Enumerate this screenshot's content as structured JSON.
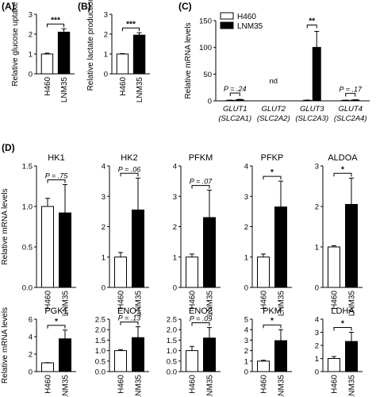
{
  "colors": {
    "white_bar": "#ffffff",
    "black_bar": "#000000",
    "stroke": "#000000"
  },
  "chart_data": [
    {
      "panel": "A",
      "type": "bar",
      "categories": [
        "H460",
        "LNM35"
      ],
      "values": [
        1.0,
        2.1
      ],
      "errors": [
        0.04,
        0.17
      ],
      "ylabel": "Relative glucose uptake",
      "ylim": [
        0,
        3
      ],
      "yticks": [
        "0",
        "1",
        "2",
        "3"
      ],
      "annotation": "***"
    },
    {
      "panel": "B",
      "type": "bar",
      "categories": [
        "H460",
        "LNM35"
      ],
      "values": [
        1.0,
        1.95
      ],
      "errors": [
        0.02,
        0.12
      ],
      "ylabel": "Relative lactate production",
      "ylim": [
        0,
        3
      ],
      "yticks": [
        "0",
        "1",
        "2",
        "3"
      ],
      "annotation": "***"
    },
    {
      "panel": "C",
      "type": "bar",
      "legend": [
        "H460",
        "LNM35"
      ],
      "groups": [
        {
          "label": "GLUT1",
          "sublabel": "(SLC2A1)",
          "values": [
            1,
            2
          ],
          "errors": [
            0.3,
            0.8
          ],
          "annotation": "P = .24",
          "nd": false
        },
        {
          "label": "GLUT2",
          "sublabel": "(SLC2A2)",
          "values": [
            0,
            0
          ],
          "errors": [
            0,
            0
          ],
          "annotation": "nd",
          "nd": true
        },
        {
          "label": "GLUT3",
          "sublabel": "(SLC2A3)",
          "values": [
            1,
            100
          ],
          "errors": [
            0.5,
            30
          ],
          "annotation": "**",
          "nd": false
        },
        {
          "label": "GLUT4",
          "sublabel": "(SLC2A4)",
          "values": [
            1,
            1.5
          ],
          "errors": [
            0.3,
            0.6
          ],
          "annotation": "P = .17",
          "nd": false
        }
      ],
      "ylabel": "Relative mRNA levels",
      "ylim": [
        0,
        150
      ],
      "yticks": [
        "0",
        "50",
        "100",
        "150"
      ]
    },
    {
      "panel": "D",
      "type": "bar",
      "title": "HK1",
      "categories": [
        "H460",
        "LNM35"
      ],
      "values": [
        1.0,
        0.92
      ],
      "errors": [
        0.1,
        0.35
      ],
      "ylim": [
        0,
        1.5
      ],
      "yticks": [
        "0.0",
        "0.5",
        "1.0",
        "1.5"
      ],
      "annotation": "P = .75",
      "ylabel": "Relative mRNA levels"
    },
    {
      "panel": "D",
      "type": "bar",
      "title": "HK2",
      "categories": [
        "H460",
        "LNM35"
      ],
      "values": [
        1.0,
        2.55
      ],
      "errors": [
        0.15,
        1.05
      ],
      "ylim": [
        0,
        4
      ],
      "yticks": [
        "0",
        "1",
        "2",
        "3",
        "4"
      ],
      "annotation": "P = .06"
    },
    {
      "panel": "D",
      "type": "bar",
      "title": "PFKM",
      "categories": [
        "H460",
        "LNM35"
      ],
      "values": [
        1.0,
        2.3
      ],
      "errors": [
        0.1,
        0.9
      ],
      "ylim": [
        0,
        4
      ],
      "yticks": [
        "0",
        "1",
        "2",
        "3",
        "4"
      ],
      "annotation": "P = .07"
    },
    {
      "panel": "D",
      "type": "bar",
      "title": "PFKP",
      "categories": [
        "H460",
        "LNM35"
      ],
      "values": [
        1.0,
        2.65
      ],
      "errors": [
        0.1,
        0.85
      ],
      "ylim": [
        0,
        4
      ],
      "yticks": [
        "0",
        "1",
        "2",
        "3",
        "4"
      ],
      "annotation": "*"
    },
    {
      "panel": "D",
      "type": "bar",
      "title": "ALDOA",
      "categories": [
        "H460",
        "LNM35"
      ],
      "values": [
        1.0,
        2.05
      ],
      "errors": [
        0.03,
        0.65
      ],
      "ylim": [
        0,
        3
      ],
      "yticks": [
        "0",
        "1",
        "2",
        "3"
      ],
      "annotation": "*"
    },
    {
      "panel": "D",
      "type": "bar",
      "title": "PGK1",
      "categories": [
        "H460",
        "LNM35"
      ],
      "values": [
        1.0,
        3.75
      ],
      "errors": [
        0.03,
        1.0
      ],
      "ylim": [
        0,
        6
      ],
      "yticks": [
        "0",
        "2",
        "4",
        "6"
      ],
      "annotation": "*",
      "ylabel": "Relative mRNA levels"
    },
    {
      "panel": "D",
      "type": "bar",
      "title": "ENO1",
      "categories": [
        "H460",
        "LNM35"
      ],
      "values": [
        1.0,
        1.62
      ],
      "errors": [
        0.05,
        0.52
      ],
      "ylim": [
        0,
        2.5
      ],
      "yticks": [
        "0.0",
        "0.5",
        "1.0",
        "1.5",
        "2.0",
        "2.5"
      ],
      "annotation": "P = .13"
    },
    {
      "panel": "D",
      "type": "bar",
      "title": "ENO2",
      "categories": [
        "H460",
        "LNM35"
      ],
      "values": [
        1.0,
        1.6
      ],
      "errors": [
        0.2,
        0.5
      ],
      "ylim": [
        0,
        2.5
      ],
      "yticks": [
        "0.0",
        "0.5",
        "1.0",
        "1.5",
        "2.0",
        "2.5"
      ],
      "annotation": "P = .09"
    },
    {
      "panel": "D",
      "type": "bar",
      "title": "PKM",
      "categories": [
        "H460",
        "LNM35"
      ],
      "values": [
        1.0,
        2.95
      ],
      "errors": [
        0.08,
        1.05
      ],
      "ylim": [
        0,
        5
      ],
      "yticks": [
        "0",
        "1",
        "2",
        "3",
        "4",
        "5"
      ],
      "annotation": "*"
    },
    {
      "panel": "D",
      "type": "bar",
      "title": "LDHA",
      "categories": [
        "H460",
        "LNM35"
      ],
      "values": [
        1.0,
        2.3
      ],
      "errors": [
        0.15,
        0.7
      ],
      "ylim": [
        0,
        4
      ],
      "yticks": [
        "0",
        "1",
        "2",
        "3",
        "4"
      ],
      "annotation": "*"
    }
  ]
}
